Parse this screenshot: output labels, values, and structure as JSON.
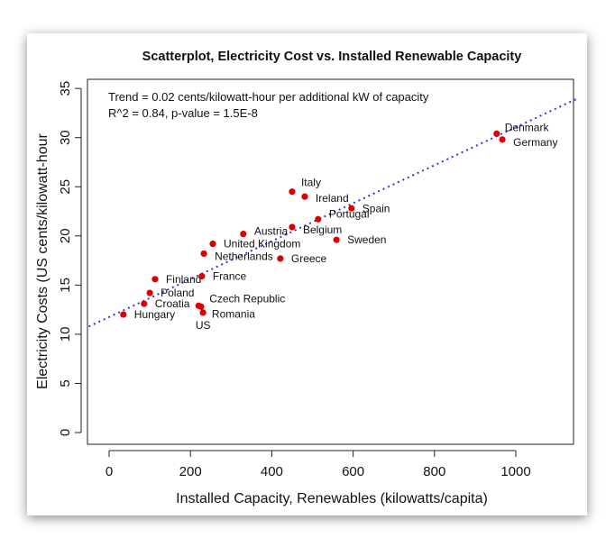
{
  "chart_data": {
    "type": "scatter",
    "title": "Scatterplot, Electricity Cost vs. Installed Renewable Capacity",
    "xlabel": "Installed Capacity, Renewables (kilowatts/capita)",
    "ylabel": "Electricity Costs (US cents/kilowatt-hour",
    "annotations": [
      "Trend = 0.02 cents/kilowatt-hour per additional kW of capacity",
      "R^2 = 0.84, p-value = 1.5E-8"
    ],
    "xlim": [
      -50,
      1150
    ],
    "ylim": [
      -1,
      37
    ],
    "xticks": [
      0,
      200,
      400,
      600,
      800,
      1000
    ],
    "yticks": [
      0,
      5,
      10,
      15,
      20,
      25,
      30,
      35
    ],
    "grid": false,
    "point_color": "#dd0000",
    "trend_color": "#3333dd",
    "trend": {
      "intercept": 11.75,
      "slope": 0.0193
    },
    "points": [
      {
        "label": "Denmark",
        "x": 953,
        "y": 30.4
      },
      {
        "label": "Germany",
        "x": 967,
        "y": 29.8
      },
      {
        "label": "Italy",
        "x": 450,
        "y": 24.5
      },
      {
        "label": "Ireland",
        "x": 481,
        "y": 24.0
      },
      {
        "label": "Spain",
        "x": 596,
        "y": 22.8
      },
      {
        "label": "Portugal",
        "x": 514,
        "y": 21.7
      },
      {
        "label": "Belgium",
        "x": 450,
        "y": 20.9
      },
      {
        "label": "Sweden",
        "x": 559,
        "y": 19.6
      },
      {
        "label": "Austria",
        "x": 330,
        "y": 20.2
      },
      {
        "label": "United Kingdom",
        "x": 255,
        "y": 19.2
      },
      {
        "label": "Netherlands",
        "x": 233,
        "y": 18.2
      },
      {
        "label": "Greece",
        "x": 421,
        "y": 17.7
      },
      {
        "label": "Finland",
        "x": 113,
        "y": 15.6
      },
      {
        "label": "France",
        "x": 228,
        "y": 15.9
      },
      {
        "label": "Poland",
        "x": 100,
        "y": 14.2
      },
      {
        "label": "Croatia",
        "x": 86,
        "y": 13.1
      },
      {
        "label": "Hungary",
        "x": 35,
        "y": 12.0
      },
      {
        "label": "Czech Republic",
        "x": 220,
        "y": 12.9
      },
      {
        "label": "Romania",
        "x": 226,
        "y": 12.8
      },
      {
        "label": "US",
        "x": 231,
        "y": 12.2
      }
    ]
  }
}
